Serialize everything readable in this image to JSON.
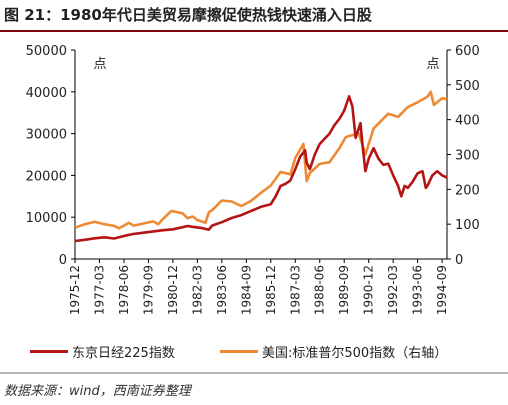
{
  "figure": {
    "title": "图 21：1980年代日美贸易摩擦促使热钱快速涌入日股",
    "source": "数据来源：wind，西南证券整理"
  },
  "colors": {
    "nikkei": "#b41414",
    "sp500": "#ee8a33",
    "title_rule": "#7a0c0c",
    "axis": "#000000"
  },
  "chart_data": {
    "type": "line",
    "y_left": {
      "lim": [
        0,
        50000
      ],
      "ticks": [
        "0",
        "10000",
        "20000",
        "30000",
        "40000",
        "50000"
      ],
      "unit_label": "点"
    },
    "y_right": {
      "lim": [
        0,
        600
      ],
      "ticks": [
        "0",
        "100",
        "200",
        "300",
        "400",
        "500",
        "600"
      ],
      "unit_label": "点"
    },
    "x_ticks": [
      "1975-12",
      "1977-03",
      "1978-06",
      "1979-09",
      "1980-12",
      "1982-03",
      "1983-06",
      "1984-09",
      "1985-12",
      "1987-03",
      "1988-06",
      "1989-09",
      "1990-12",
      "1992-03",
      "1993-06",
      "1994-09"
    ],
    "x_range": [
      "1975-12",
      "1994-12"
    ],
    "series": [
      {
        "name": "东京日经225指数",
        "axis": "left",
        "points": [
          [
            "1975-12",
            4300
          ],
          [
            "1976-06",
            4600
          ],
          [
            "1976-12",
            4950
          ],
          [
            "1977-06",
            5200
          ],
          [
            "1977-12",
            4900
          ],
          [
            "1978-06",
            5500
          ],
          [
            "1978-12",
            6000
          ],
          [
            "1979-06",
            6300
          ],
          [
            "1979-12",
            6600
          ],
          [
            "1980-06",
            6900
          ],
          [
            "1980-12",
            7100
          ],
          [
            "1981-06",
            7600
          ],
          [
            "1981-09",
            7900
          ],
          [
            "1981-12",
            7700
          ],
          [
            "1982-06",
            7400
          ],
          [
            "1982-10",
            7000
          ],
          [
            "1982-12",
            8000
          ],
          [
            "1983-06",
            8800
          ],
          [
            "1983-12",
            9800
          ],
          [
            "1984-06",
            10500
          ],
          [
            "1984-12",
            11500
          ],
          [
            "1985-06",
            12500
          ],
          [
            "1985-12",
            13100
          ],
          [
            "1986-03",
            15000
          ],
          [
            "1986-06",
            17500
          ],
          [
            "1986-09",
            18000
          ],
          [
            "1986-12",
            18800
          ],
          [
            "1987-03",
            21500
          ],
          [
            "1987-06",
            24500
          ],
          [
            "1987-09",
            26000
          ],
          [
            "1987-10",
            23000
          ],
          [
            "1987-12",
            21500
          ],
          [
            "1988-03",
            25000
          ],
          [
            "1988-06",
            27500
          ],
          [
            "1988-12",
            30000
          ],
          [
            "1989-03",
            32000
          ],
          [
            "1989-06",
            33500
          ],
          [
            "1989-09",
            35500
          ],
          [
            "1989-12",
            38900
          ],
          [
            "1990-02",
            36500
          ],
          [
            "1990-04",
            29000
          ],
          [
            "1990-07",
            32500
          ],
          [
            "1990-08",
            28000
          ],
          [
            "1990-10",
            21000
          ],
          [
            "1990-12",
            24000
          ],
          [
            "1991-03",
            26500
          ],
          [
            "1991-06",
            24000
          ],
          [
            "1991-09",
            22500
          ],
          [
            "1991-12",
            22800
          ],
          [
            "1992-03",
            20000
          ],
          [
            "1992-06",
            17500
          ],
          [
            "1992-08",
            15000
          ],
          [
            "1992-10",
            17500
          ],
          [
            "1992-12",
            17000
          ],
          [
            "1993-03",
            18500
          ],
          [
            "1993-06",
            20500
          ],
          [
            "1993-09",
            21000
          ],
          [
            "1993-11",
            17000
          ],
          [
            "1993-12",
            17500
          ],
          [
            "1994-03",
            20000
          ],
          [
            "1994-06",
            21000
          ],
          [
            "1994-09",
            20000
          ],
          [
            "1994-12",
            19500
          ]
        ]
      },
      {
        "name": "美国:标准普尔500指数（右轴）",
        "axis": "right",
        "points": [
          [
            "1975-12",
            90
          ],
          [
            "1976-06",
            100
          ],
          [
            "1976-12",
            107
          ],
          [
            "1977-06",
            100
          ],
          [
            "1977-12",
            95
          ],
          [
            "1978-03",
            88
          ],
          [
            "1978-06",
            96
          ],
          [
            "1978-09",
            104
          ],
          [
            "1978-12",
            96
          ],
          [
            "1979-06",
            102
          ],
          [
            "1979-12",
            108
          ],
          [
            "1980-03",
            100
          ],
          [
            "1980-06",
            115
          ],
          [
            "1980-11",
            138
          ],
          [
            "1981-06",
            131
          ],
          [
            "1981-09",
            117
          ],
          [
            "1981-12",
            122
          ],
          [
            "1982-03",
            112
          ],
          [
            "1982-08",
            104
          ],
          [
            "1982-10",
            134
          ],
          [
            "1982-12",
            140
          ],
          [
            "1983-06",
            168
          ],
          [
            "1983-12",
            165
          ],
          [
            "1984-06",
            152
          ],
          [
            "1984-12",
            167
          ],
          [
            "1985-06",
            190
          ],
          [
            "1985-12",
            211
          ],
          [
            "1986-06",
            250
          ],
          [
            "1986-12",
            243
          ],
          [
            "1987-03",
            290
          ],
          [
            "1987-08",
            330
          ],
          [
            "1987-10",
            224
          ],
          [
            "1987-12",
            247
          ],
          [
            "1988-06",
            273
          ],
          [
            "1988-12",
            278
          ],
          [
            "1989-06",
            318
          ],
          [
            "1989-10",
            350
          ],
          [
            "1989-12",
            353
          ],
          [
            "1990-06",
            360
          ],
          [
            "1990-10",
            300
          ],
          [
            "1990-12",
            330
          ],
          [
            "1991-03",
            375
          ],
          [
            "1991-12",
            417
          ],
          [
            "1992-06",
            408
          ],
          [
            "1992-12",
            436
          ],
          [
            "1993-06",
            450
          ],
          [
            "1993-12",
            466
          ],
          [
            "1994-02",
            480
          ],
          [
            "1994-04",
            442
          ],
          [
            "1994-09",
            462
          ],
          [
            "1994-12",
            459
          ]
        ]
      }
    ]
  }
}
